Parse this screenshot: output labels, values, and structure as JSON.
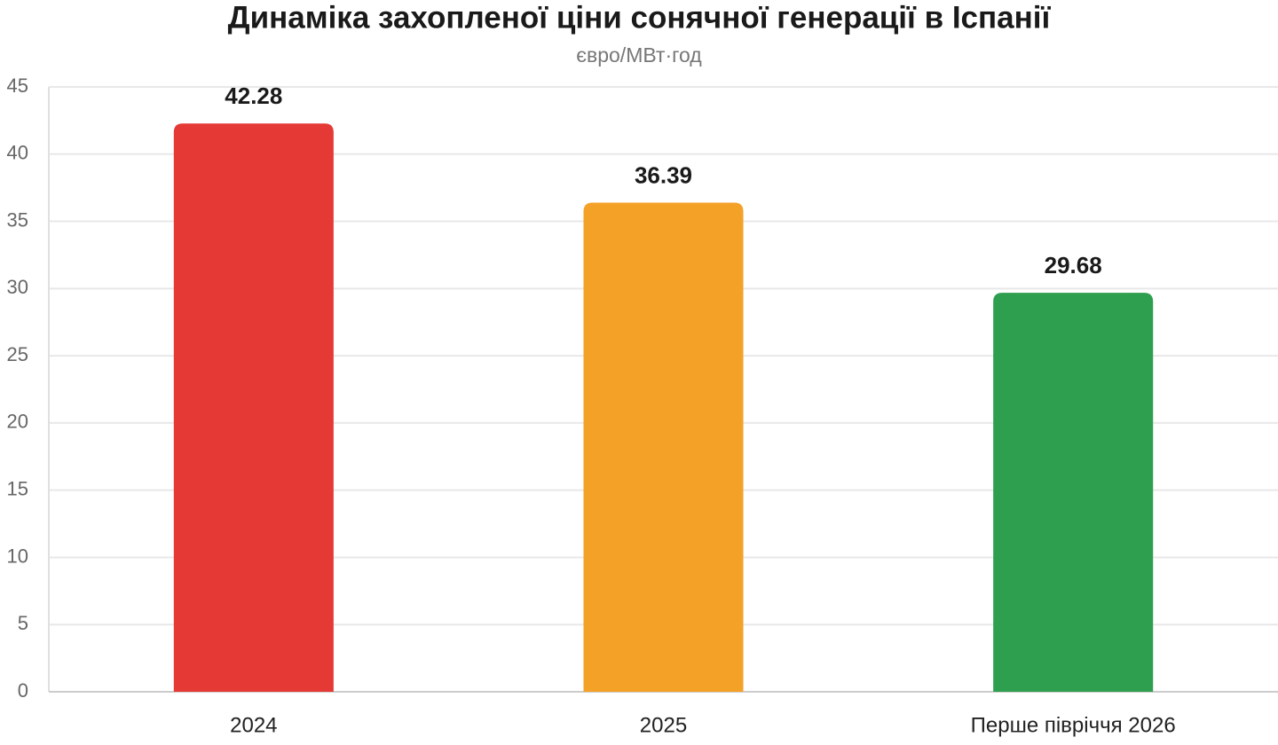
{
  "chart_data": {
    "type": "bar",
    "title": "Динаміка захопленої ціни сонячної генерації в Іспанії",
    "subtitle": "євро/МВт·год",
    "categories": [
      "2024",
      "2025",
      "Перше півріччя 2026"
    ],
    "values": [
      42.28,
      36.39,
      29.68
    ],
    "colors": [
      "#e53935",
      "#f4a227",
      "#2e9e4f"
    ],
    "ylim": [
      0,
      45
    ],
    "yticks": [
      0,
      5,
      10,
      15,
      20,
      25,
      30,
      35,
      40,
      45
    ],
    "grid": true
  }
}
